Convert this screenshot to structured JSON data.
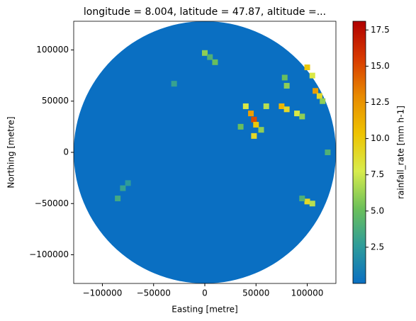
{
  "chart_data": {
    "type": "heatmap",
    "title": "longitude = 8.004, latitude = 47.87, altitude =...",
    "x_label": "Easting [metre]",
    "y_label": "Northing [metre]",
    "colorbar_label": "rainfall_rate [mm h-1]",
    "xlim": [
      -128000,
      128000
    ],
    "ylim": [
      -128000,
      128000
    ],
    "xticks": [
      {
        "value": -100000,
        "label": "−100000"
      },
      {
        "value": -50000,
        "label": "−50000"
      },
      0,
      50000,
      100000
    ],
    "yticks": [
      {
        "value": -100000,
        "label": "−100000"
      },
      {
        "value": -50000,
        "label": "−50000"
      },
      0,
      50000,
      100000
    ],
    "clim": [
      0,
      18.1
    ],
    "cticks": [
      2.5,
      {
        "value": 5,
        "label": "5.0"
      },
      7.5,
      {
        "value": 10,
        "label": "10.0"
      },
      12.5,
      {
        "value": 15,
        "label": "15.0"
      },
      17.5
    ],
    "colormap": [
      "#0a6fc2",
      "#2e9c9a",
      "#6cc05a",
      "#d8ec4c",
      "#eec300",
      "#e88a00",
      "#d83a00",
      "#b00000"
    ],
    "x": [
      0,
      5000,
      10000,
      40000,
      45000,
      48000,
      50000,
      55000,
      48000,
      35000,
      60000,
      75000,
      80000,
      90000,
      95000,
      78000,
      80000,
      100000,
      105000,
      108000,
      112000,
      115000,
      100000,
      105000,
      95000,
      -80000,
      -85000,
      -75000,
      -30000,
      120000
    ],
    "y": [
      97000,
      93000,
      88000,
      45000,
      38000,
      32000,
      27000,
      22000,
      16000,
      25000,
      45000,
      45000,
      42000,
      38000,
      35000,
      73000,
      65000,
      83000,
      75000,
      60000,
      55000,
      50000,
      -48000,
      -50000,
      -45000,
      -35000,
      -45000,
      -30000,
      67000,
      0
    ],
    "values": [
      6,
      4,
      5,
      8,
      12,
      15,
      10,
      6,
      9,
      5,
      7,
      11,
      9,
      8,
      6,
      5,
      6,
      10,
      8,
      12,
      9,
      6,
      9,
      7,
      4,
      3,
      3.5,
      2.5,
      3,
      4
    ]
  }
}
